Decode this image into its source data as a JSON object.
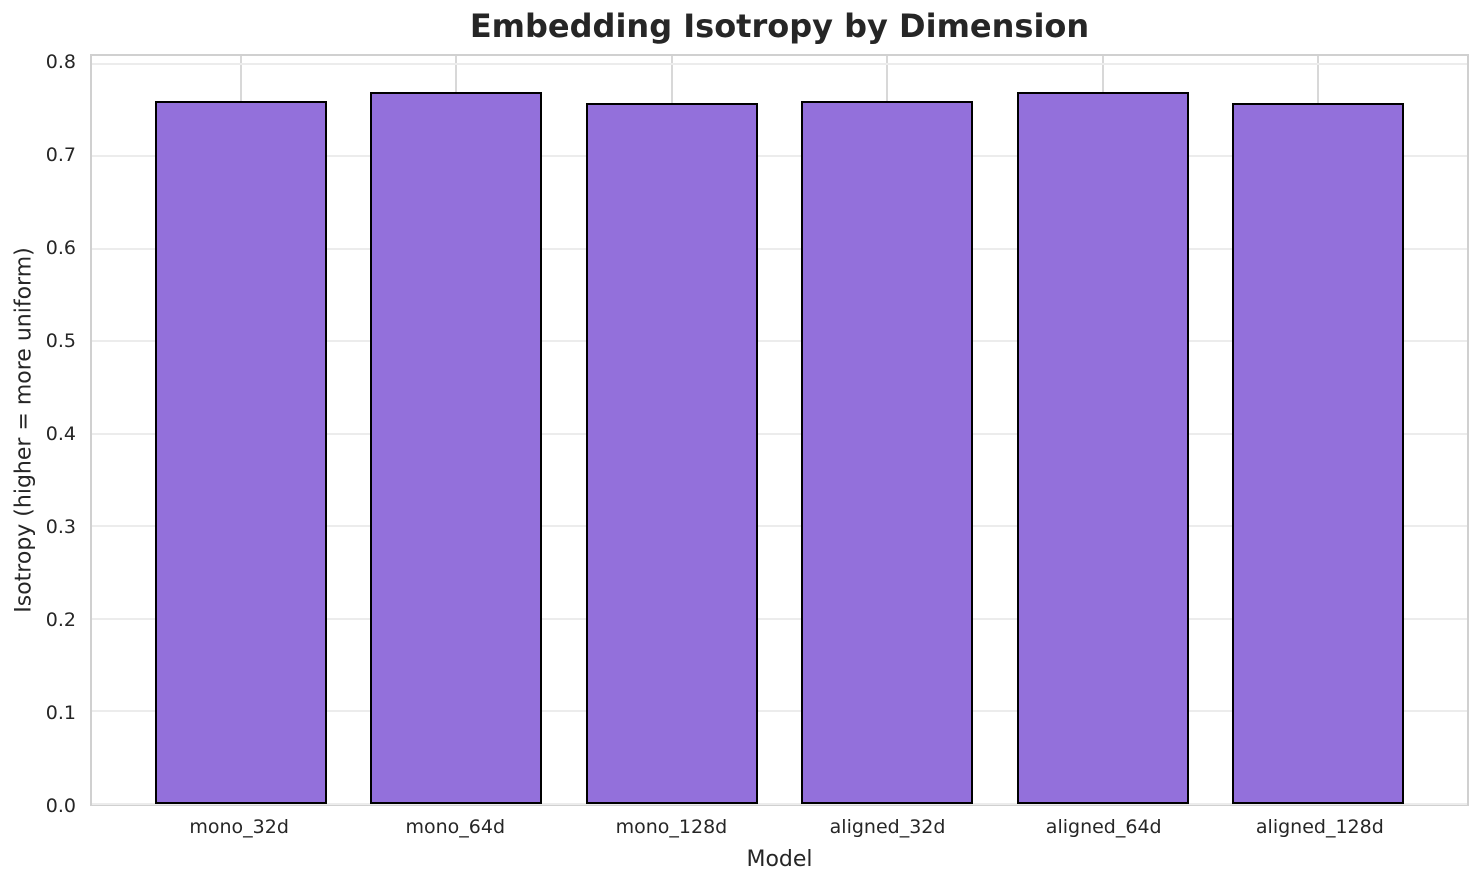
{
  "chart_data": {
    "type": "bar",
    "title": "Embedding Isotropy by Dimension",
    "xlabel": "Model",
    "ylabel": "Isotropy (higher = more uniform)",
    "categories": [
      "mono_32d",
      "mono_64d",
      "mono_128d",
      "aligned_32d",
      "aligned_64d",
      "aligned_128d"
    ],
    "values": [
      0.76,
      0.77,
      0.758,
      0.76,
      0.77,
      0.758
    ],
    "ylim": [
      0,
      0.8085
    ],
    "xlim": [
      -0.69,
      5.69
    ],
    "bar_width": 0.8,
    "yticks": [
      "0.0",
      "0.1",
      "0.2",
      "0.3",
      "0.4",
      "0.5",
      "0.6",
      "0.7",
      "0.8"
    ],
    "grid": true,
    "legend": "none",
    "colors": {
      "bar_fill": "#9370DB",
      "bar_edge": "#000000",
      "grid_x": "#d8d8d8",
      "grid_y": "#ececec",
      "spine": "#d0d0d0",
      "text": "#262626",
      "background": "#ffffff"
    }
  }
}
